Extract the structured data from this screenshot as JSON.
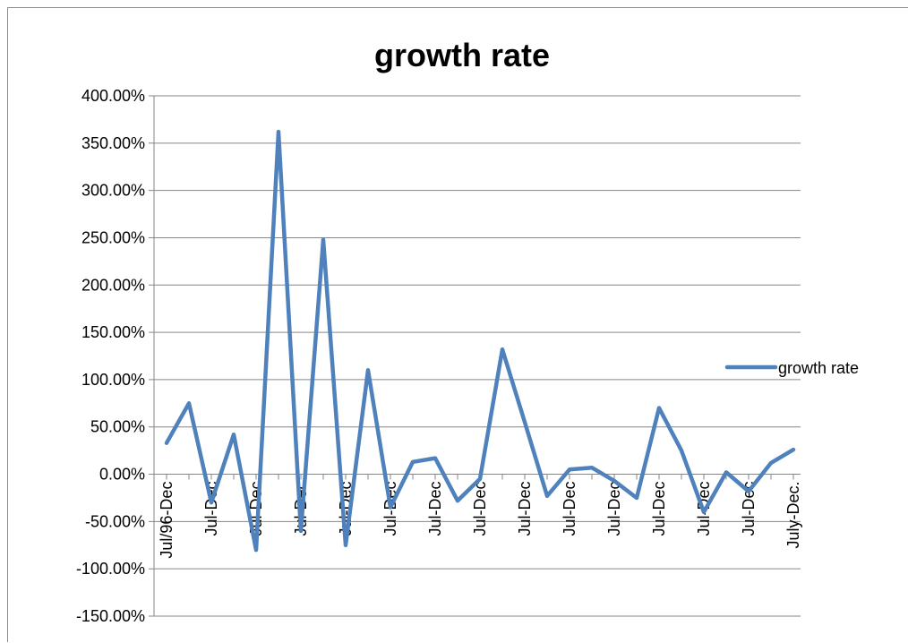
{
  "chart_data": {
    "type": "line",
    "title": "growth rate",
    "xlabel": "",
    "ylabel": "",
    "ylim": [
      -1.5,
      4.0
    ],
    "y_tick_step": 0.5,
    "y_tick_format": "percent_2dp",
    "grid": "horizontal",
    "legend_position": "right",
    "x_tick_labels": [
      "Jul/96-Dec",
      "Jul-Dec",
      "Jul-Dec",
      "Jul-Dec",
      "Jul-Dec",
      "Jul-Dec",
      "Jul-Dec",
      "Jul-Dec",
      "Jul-Dec",
      "Jul-Dec",
      "Jul-Dec",
      "Jul-Dec",
      "Jul-Dec",
      "Jul-Dec",
      "July-Dec."
    ],
    "series": [
      {
        "name": "growth rate",
        "color": "#4f81bd",
        "values": [
          0.33,
          0.75,
          -0.3,
          0.42,
          -0.8,
          3.62,
          -0.6,
          2.48,
          -0.75,
          1.1,
          -0.35,
          0.13,
          0.17,
          -0.28,
          -0.05,
          1.32,
          0.55,
          -0.23,
          0.05,
          0.07,
          -0.07,
          -0.25,
          0.7,
          0.25,
          -0.4,
          0.02,
          -0.18,
          0.12,
          0.26
        ]
      }
    ]
  }
}
